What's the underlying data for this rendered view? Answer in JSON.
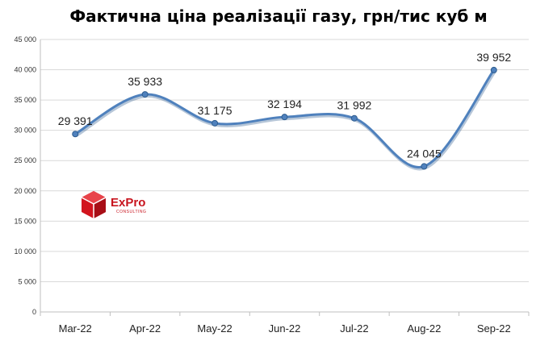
{
  "title": "Фактична ціна реалізації газу, грн/тис куб м",
  "logo": {
    "name": "ExPro",
    "subtitle": "CONSULTING"
  },
  "chart_data": {
    "type": "line",
    "title": "Фактична ціна реалізації газу, грн/тис куб м",
    "categories": [
      "Mar-22",
      "Apr-22",
      "May-22",
      "Jun-22",
      "Jul-22",
      "Aug-22",
      "Sep-22"
    ],
    "series": [
      {
        "values": [
          29391,
          35933,
          31175,
          32194,
          31992,
          24045,
          39952
        ]
      }
    ],
    "data_labels": [
      "29 391",
      "35 933",
      "31 175",
      "32 194",
      "31 992",
      "24 045",
      "39 952"
    ],
    "y_ticks": [
      "0",
      "5 000",
      "10 000",
      "15 000",
      "20 000",
      "25 000",
      "30 000",
      "35 000",
      "40 000",
      "45 000"
    ],
    "ylim": [
      0,
      45000
    ],
    "grid": true,
    "smooth": true,
    "colors": {
      "line": "#4f81bd",
      "marker": "#4f81bd",
      "grid": "#d9d9d9"
    }
  }
}
